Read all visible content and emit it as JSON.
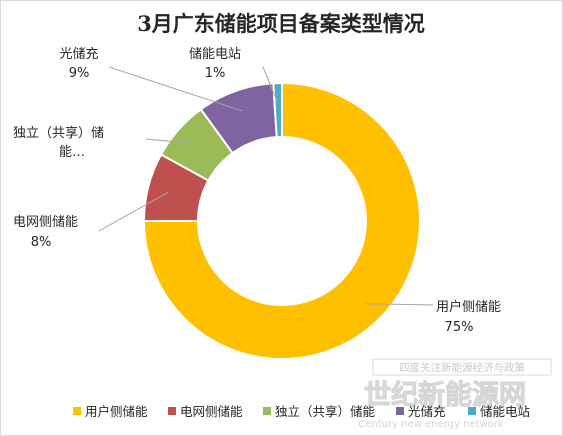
{
  "chart_data": {
    "type": "pie",
    "style": "donut",
    "title": "3月广东储能项目备案类型情况",
    "categories": [
      "用户侧储能",
      "电网侧储能",
      "独立（共享）储能",
      "光储充",
      "储能电站"
    ],
    "values": [
      75,
      8,
      7,
      9,
      1
    ],
    "value_unit": "%",
    "data_labels": [
      {
        "name": "用户侧储能",
        "value": "75%"
      },
      {
        "name": "电网侧储能",
        "value": "8%"
      },
      {
        "name": "独立（共享）储能…",
        "value": ""
      },
      {
        "name": "光储充",
        "value": "9%"
      },
      {
        "name": "储能电站",
        "value": "1%"
      }
    ],
    "colors": [
      "#FFC000",
      "#C0504D",
      "#9BBB59",
      "#8064A2",
      "#4BACC6"
    ],
    "legend": {
      "position": "bottom",
      "entries": [
        "用户侧储能",
        "电网侧储能",
        "独立（共享）储能",
        "光储充",
        "储能电站"
      ]
    }
  },
  "watermark": {
    "top": "四度关注新能源经济与政策",
    "main": "世纪新能源网",
    "sub": "Century new energy network"
  }
}
